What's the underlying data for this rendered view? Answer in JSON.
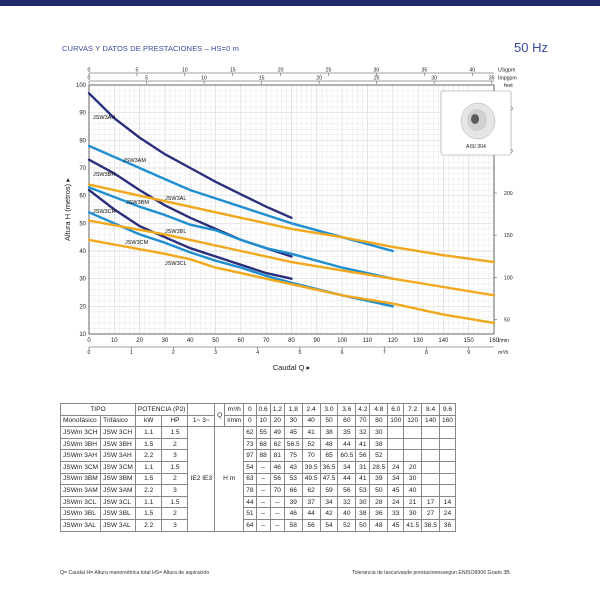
{
  "header": {
    "title": "CURVAS Y DATOS DE PRESTACIONES –  HS=0 m",
    "frequency": "50 Hz"
  },
  "colors": {
    "dark_navy": "#2b2f7c",
    "blue": "#1f8fd0",
    "orange": "#f2a81d",
    "grid": "#bdbdbd"
  },
  "chart_data": {
    "type": "line",
    "ylabel": "Altura H (metros)",
    "xlabel": "Caudal Q",
    "xlim": [
      0,
      160
    ],
    "ylim": [
      10,
      100
    ],
    "x_ticks": [
      "0",
      "10",
      "20",
      "30",
      "40",
      "50",
      "60",
      "70",
      "80",
      "90",
      "100",
      "110",
      "120",
      "130",
      "140",
      "150",
      "160"
    ],
    "x_unit": "l/min",
    "x_ticks_m3h": [
      "0",
      "1",
      "2",
      "3",
      "4",
      "5",
      "6",
      "7",
      "8",
      "9"
    ],
    "x_unit_m3h": "m³/h",
    "y_ticks": [
      "10",
      "20",
      "30",
      "40",
      "50",
      "60",
      "70",
      "80",
      "90",
      "100"
    ],
    "x_top_usgpm": [
      "0",
      "5",
      "10",
      "15",
      "20",
      "25",
      "30",
      "35",
      "40"
    ],
    "x_top_usgpm_unit": "USgpm",
    "x_top_impgpm": [
      "0",
      "5",
      "10",
      "15",
      "20",
      "25",
      "30",
      "35"
    ],
    "x_top_impgpm_unit": "Impgpm",
    "y_right_feet": [
      "50",
      "100",
      "150",
      "200",
      "250",
      "300"
    ],
    "y_right_unit": "feet",
    "inset_label": "AISI 304",
    "series": [
      {
        "name": "JSW3AH",
        "color": "#2b2f7c",
        "x": [
          0,
          10,
          20,
          30,
          40,
          50,
          60,
          70,
          80
        ],
        "y": [
          97,
          88,
          81,
          75,
          70,
          65,
          60.5,
          56,
          52
        ]
      },
      {
        "name": "JSW3BH",
        "color": "#2b2f7c",
        "x": [
          0,
          10,
          20,
          30,
          40,
          50,
          60,
          70,
          80
        ],
        "y": [
          73,
          68,
          62,
          56.5,
          52,
          48,
          44,
          41,
          38
        ]
      },
      {
        "name": "JSW3CH",
        "color": "#2b2f7c",
        "x": [
          0,
          10,
          20,
          30,
          40,
          50,
          60,
          70,
          80
        ],
        "y": [
          62,
          55,
          49,
          45,
          41,
          38,
          35,
          32,
          30
        ]
      },
      {
        "name": "JSW3AM",
        "color": "#1f8fd0",
        "x": [
          0,
          20,
          30,
          40,
          50,
          60,
          70,
          80,
          100,
          120
        ],
        "y": [
          78,
          70,
          66,
          62,
          59,
          56,
          53,
          50,
          45,
          40
        ]
      },
      {
        "name": "JSW3BM",
        "color": "#1f8fd0",
        "x": [
          0,
          20,
          30,
          40,
          50,
          60,
          70,
          80,
          100,
          120
        ],
        "y": [
          63,
          56,
          53,
          49.5,
          47.5,
          44,
          41,
          39,
          34,
          30
        ]
      },
      {
        "name": "JSW3CM",
        "color": "#1f8fd0",
        "x": [
          0,
          20,
          30,
          40,
          50,
          60,
          70,
          80,
          100,
          120
        ],
        "y": [
          54,
          46,
          43,
          39.5,
          36.5,
          34,
          31,
          28.5,
          24,
          20
        ]
      },
      {
        "name": "JSW3AL",
        "color": "#f2a81d",
        "x": [
          0,
          30,
          40,
          50,
          60,
          70,
          80,
          100,
          120,
          140,
          160
        ],
        "y": [
          64,
          58,
          56,
          54,
          52,
          50,
          48,
          45,
          41.5,
          38.5,
          36
        ]
      },
      {
        "name": "JSW3BL",
        "color": "#f2a81d",
        "x": [
          0,
          30,
          40,
          50,
          60,
          70,
          80,
          100,
          120,
          140,
          160
        ],
        "y": [
          51,
          46,
          44,
          42,
          40,
          38,
          36,
          33,
          30,
          27,
          24
        ]
      },
      {
        "name": "JSW3CL",
        "color": "#f2a81d",
        "x": [
          0,
          30,
          40,
          50,
          60,
          70,
          80,
          100,
          120,
          140,
          160
        ],
        "y": [
          44,
          39,
          37,
          34,
          32,
          30,
          28,
          24,
          21,
          17,
          14
        ]
      }
    ]
  },
  "table": {
    "h_tipo": "TIPO",
    "h_potencia": "POTENCIA (P2)",
    "h_q": "Q",
    "h_m3h": "m³/h",
    "h_lmin": "l/min",
    "h_mono": "Monofásico",
    "h_tri": "Trifásico",
    "h_kw": "kW",
    "h_hp": "HP",
    "h_phase": "1~ 3~",
    "ie": "IE2 IE3",
    "h_label": "H  m",
    "m3h": [
      "0",
      "0.6",
      "1.2",
      "1.8",
      "2.4",
      "3.0",
      "3.6",
      "4.2",
      "4.8",
      "6.0",
      "7.2",
      "8.4",
      "9.6"
    ],
    "lmin": [
      "0",
      "10",
      "20",
      "30",
      "40",
      "50",
      "60",
      "70",
      "80",
      "100",
      "120",
      "140",
      "160"
    ],
    "rows": [
      {
        "mono": "JSWm 3CH",
        "tri": "JSW 3CH",
        "kw": "1.1",
        "hp": "1.5",
        "h": [
          "62",
          "55",
          "49",
          "45",
          "41",
          "38",
          "35",
          "32",
          "30",
          "",
          "",
          "",
          ""
        ]
      },
      {
        "mono": "JSWm 3BH",
        "tri": "JSW 3BH",
        "kw": "1.5",
        "hp": "2",
        "h": [
          "73",
          "68",
          "62",
          "56.5",
          "52",
          "48",
          "44",
          "41",
          "38",
          "",
          "",
          "",
          ""
        ]
      },
      {
        "mono": "JSWm 3AH",
        "tri": "JSW 3AH",
        "kw": "2.2",
        "hp": "3",
        "h": [
          "97",
          "88",
          "81",
          "75",
          "70",
          "65",
          "60.5",
          "56",
          "52",
          "",
          "",
          "",
          ""
        ]
      },
      {
        "mono": "JSWm 3CM",
        "tri": "JSW 3CM",
        "kw": "1.1",
        "hp": "1.5",
        "h": [
          "54",
          "–",
          "46",
          "43",
          "39.5",
          "36.5",
          "34",
          "31",
          "28.5",
          "24",
          "20",
          "",
          ""
        ]
      },
      {
        "mono": "JSWm 3BM",
        "tri": "JSW 3BM",
        "kw": "1.5",
        "hp": "2",
        "h": [
          "63",
          "–",
          "56",
          "53",
          "49.5",
          "47.5",
          "44",
          "41",
          "39",
          "34",
          "30",
          "",
          ""
        ]
      },
      {
        "mono": "JSWm 3AM",
        "tri": "JSW 3AM",
        "kw": "2.2",
        "hp": "3",
        "h": [
          "78",
          "–",
          "70",
          "66",
          "62",
          "59",
          "56",
          "53",
          "50",
          "45",
          "40",
          "",
          ""
        ]
      },
      {
        "mono": "JSWm 3CL",
        "tri": "JSW 3CL",
        "kw": "1.1",
        "hp": "1.5",
        "h": [
          "44",
          "–",
          "–",
          "39",
          "37",
          "34",
          "32",
          "30",
          "28",
          "24",
          "21",
          "17",
          "14"
        ]
      },
      {
        "mono": "JSWm 3BL",
        "tri": "JSW 3BL",
        "kw": "1.5",
        "hp": "2",
        "h": [
          "51",
          "–",
          "–",
          "46",
          "44",
          "42",
          "40",
          "38",
          "36",
          "33",
          "30",
          "27",
          "24"
        ]
      },
      {
        "mono": "JSWm 3AL",
        "tri": "JSW 3AL",
        "kw": "2.2",
        "hp": "3",
        "h": [
          "64",
          "–",
          "–",
          "58",
          "56",
          "54",
          "52",
          "50",
          "48",
          "45",
          "41.5",
          "38.5",
          "36"
        ]
      }
    ]
  },
  "footer": {
    "left": "Q= Caudal   H= Altura manométrica total   HS= Altura de aspiración",
    "right": "Tolerancia de lascurvasde  prestacionessegún  ENISO9906 Grado 3B."
  }
}
